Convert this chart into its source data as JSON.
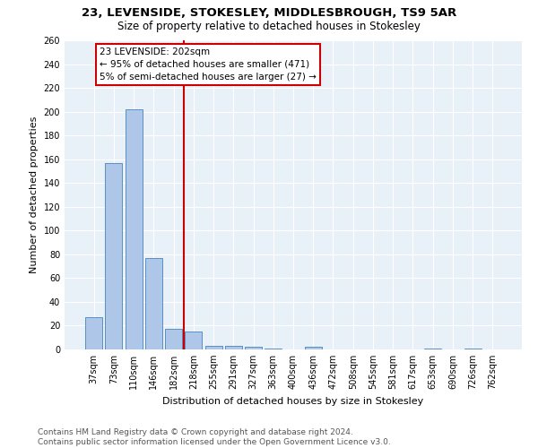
{
  "title1": "23, LEVENSIDE, STOKESLEY, MIDDLESBROUGH, TS9 5AR",
  "title2": "Size of property relative to detached houses in Stokesley",
  "xlabel": "Distribution of detached houses by size in Stokesley",
  "ylabel": "Number of detached properties",
  "categories": [
    "37sqm",
    "73sqm",
    "110sqm",
    "146sqm",
    "182sqm",
    "218sqm",
    "255sqm",
    "291sqm",
    "327sqm",
    "363sqm",
    "400sqm",
    "436sqm",
    "472sqm",
    "508sqm",
    "545sqm",
    "581sqm",
    "617sqm",
    "653sqm",
    "690sqm",
    "726sqm",
    "762sqm"
  ],
  "values": [
    27,
    157,
    202,
    77,
    17,
    15,
    3,
    3,
    2,
    1,
    0,
    2,
    0,
    0,
    0,
    0,
    0,
    1,
    0,
    1,
    0
  ],
  "bar_color": "#aec6e8",
  "bar_edge_color": "#5a8fc2",
  "vline_color": "#cc0000",
  "annotation_text": "23 LEVENSIDE: 202sqm\n← 95% of detached houses are smaller (471)\n5% of semi-detached houses are larger (27) →",
  "annotation_box_color": "#cc0000",
  "ylim": [
    0,
    260
  ],
  "yticks": [
    0,
    20,
    40,
    60,
    80,
    100,
    120,
    140,
    160,
    180,
    200,
    220,
    240,
    260
  ],
  "footer_text": "Contains HM Land Registry data © Crown copyright and database right 2024.\nContains public sector information licensed under the Open Government Licence v3.0.",
  "bg_color": "#e8f0f8",
  "grid_color": "#ffffff",
  "title1_fontsize": 9.5,
  "title2_fontsize": 8.5,
  "xlabel_fontsize": 8,
  "ylabel_fontsize": 8,
  "tick_fontsize": 7,
  "annotation_fontsize": 7.5,
  "footer_fontsize": 6.5
}
